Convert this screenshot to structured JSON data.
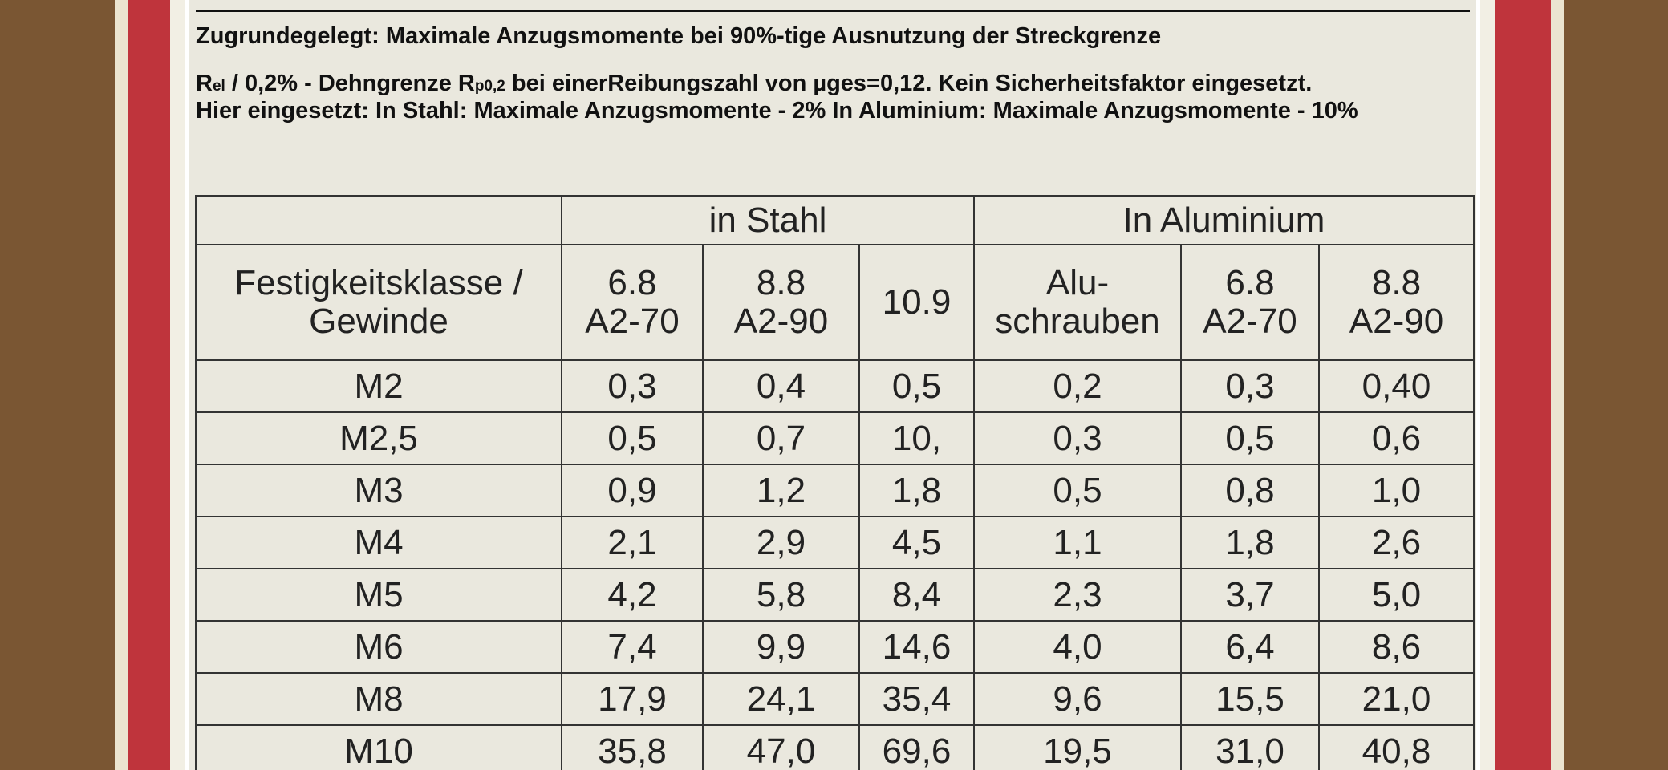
{
  "notes": {
    "line1": "Zugrundegelegt:  Maximale Anzugsmomente bei 90%-tige Ausnutzung der Streckgrenze",
    "line2": [
      "R",
      "el",
      " / 0,2% - Dehngrenze R",
      "p0,2",
      " bei einerReibungszahl von µges=0,12. Kein Sicherheitsfaktor eingesetzt."
    ],
    "line3": "Hier eingesetzt: In Stahl: Maximale Anzugsmomente - 2%    In Aluminium: Maximale Anzugsmomente - 10%"
  },
  "table": {
    "groups": [
      "in Stahl",
      "In Aluminium"
    ],
    "header": [
      [
        "Festigkeitsklasse /",
        "Gewinde"
      ],
      [
        "6.8",
        "A2-70"
      ],
      [
        "8.8",
        "A2-90"
      ],
      [
        "10.9"
      ],
      [
        "Alu-",
        "schrauben"
      ],
      [
        "6.8",
        "A2-70"
      ],
      [
        "8.8",
        "A2-90"
      ]
    ],
    "rows": [
      [
        "M2",
        "0,3",
        "0,4",
        "0,5",
        "0,2",
        "0,3",
        "0,40"
      ],
      [
        "M2,5",
        "0,5",
        "0,7",
        "10,",
        "0,3",
        "0,5",
        "0,6"
      ],
      [
        "M3",
        "0,9",
        "1,2",
        "1,8",
        "0,5",
        "0,8",
        "1,0"
      ],
      [
        "M4",
        "2,1",
        "2,9",
        "4,5",
        "1,1",
        "1,8",
        "2,6"
      ],
      [
        "M5",
        "4,2",
        "5,8",
        "8,4",
        "2,3",
        "3,7",
        "5,0"
      ],
      [
        "M6",
        "7,4",
        "9,9",
        "14,6",
        "4,0",
        "6,4",
        "8,6"
      ],
      [
        "M8",
        "17,9",
        "24,1",
        "35,4",
        "9,6",
        "15,5",
        "21,0"
      ],
      [
        "M10",
        "35,8",
        "47,0",
        "69,6",
        "19,5",
        "31,0",
        "40,8"
      ]
    ]
  }
}
